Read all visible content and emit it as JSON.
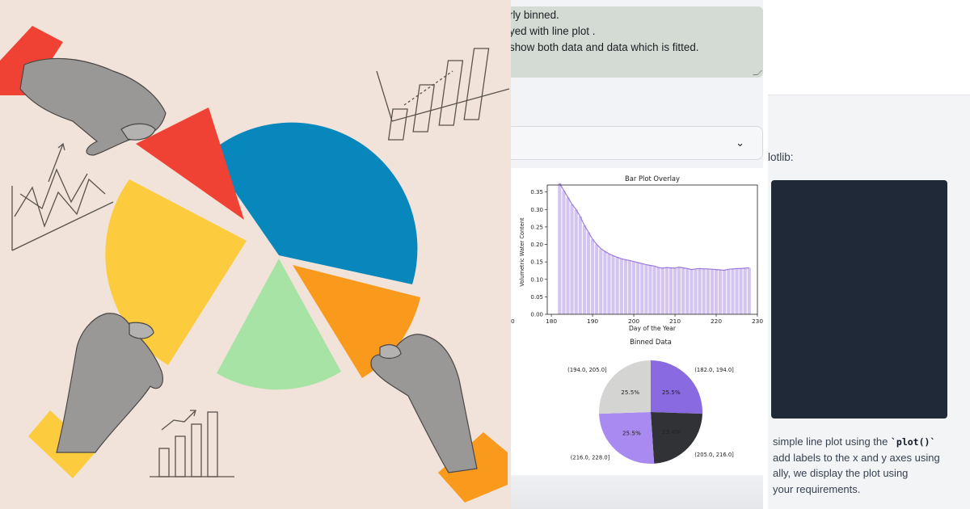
{
  "prompt": {
    "lines": [
      "rly binned.",
      "yed with line plot .",
      "show both data and data which is fitted."
    ]
  },
  "dropdown": {
    "icon": "chevron-down-icon",
    "selected": ""
  },
  "colors": {
    "collage_bg": "#f1e3d9",
    "pie_blue": "#0787bb",
    "pie_red": "#f04234",
    "pie_yellow": "#fdcb3e",
    "pie_green": "#a8e3a6",
    "pie_orange": "#f99a1d",
    "bar_fill": "#d3c4f0",
    "line_color": "#9c7ad9",
    "code_bg": "#1f2937"
  },
  "chart_data": [
    {
      "type": "bar",
      "title": "Bar Plot Overlay",
      "xlabel": "Day of the Year",
      "ylabel": "Volumetric Water Content",
      "xlim": [
        179,
        230
      ],
      "ylim": [
        0,
        0.37
      ],
      "xticks": [
        "180",
        "190",
        "200",
        "210",
        "220",
        "230"
      ],
      "yticks": [
        "0.00",
        "0.05",
        "0.10",
        "0.15",
        "0.20",
        "0.25",
        "0.30",
        "0.35"
      ],
      "x": [
        182,
        183,
        184,
        185,
        186,
        187,
        188,
        189,
        190,
        191,
        192,
        193,
        194,
        195,
        196,
        197,
        198,
        199,
        200,
        201,
        202,
        203,
        204,
        205,
        206,
        207,
        208,
        209,
        210,
        211,
        212,
        213,
        214,
        215,
        216,
        217,
        218,
        219,
        220,
        221,
        222,
        223,
        224,
        225,
        226,
        227,
        228
      ],
      "values": [
        0.375,
        0.355,
        0.335,
        0.315,
        0.3,
        0.28,
        0.255,
        0.235,
        0.215,
        0.2,
        0.188,
        0.18,
        0.173,
        0.168,
        0.163,
        0.159,
        0.156,
        0.154,
        0.151,
        0.148,
        0.145,
        0.142,
        0.14,
        0.138,
        0.134,
        0.132,
        0.134,
        0.133,
        0.132,
        0.135,
        0.133,
        0.131,
        0.128,
        0.13,
        0.131,
        0.13,
        0.13,
        0.129,
        0.128,
        0.127,
        0.126,
        0.129,
        0.13,
        0.131,
        0.131,
        0.132,
        0.133
      ],
      "grid": false
    },
    {
      "type": "pie",
      "title": "Binned Data",
      "labels": [
        "(182.0, 194.0]",
        "(205.0, 216.0]",
        "(216.0, 228.0]",
        "(194.0, 205.0]"
      ],
      "values": [
        25.5,
        23.4,
        25.5,
        25.5
      ],
      "value_labels": [
        "25.5%",
        "23.4%",
        "25.5%",
        "25.5%"
      ],
      "slice_colors": [
        "#8a6ae0",
        "#313236",
        "#a98af0",
        "#d4d4d2"
      ]
    }
  ],
  "right": {
    "lib_text": "lotlib:",
    "paragraph": [
      {
        "pre": "simple line plot using the ",
        "code": "`plot()`",
        "post": ""
      },
      {
        "pre": "add labels to the x and y axes using",
        "code": "",
        "post": ""
      },
      {
        "pre": "ally, we display the plot using",
        "code": "",
        "post": ""
      },
      {
        "pre": "your requirements.",
        "code": "",
        "post": ""
      }
    ]
  }
}
